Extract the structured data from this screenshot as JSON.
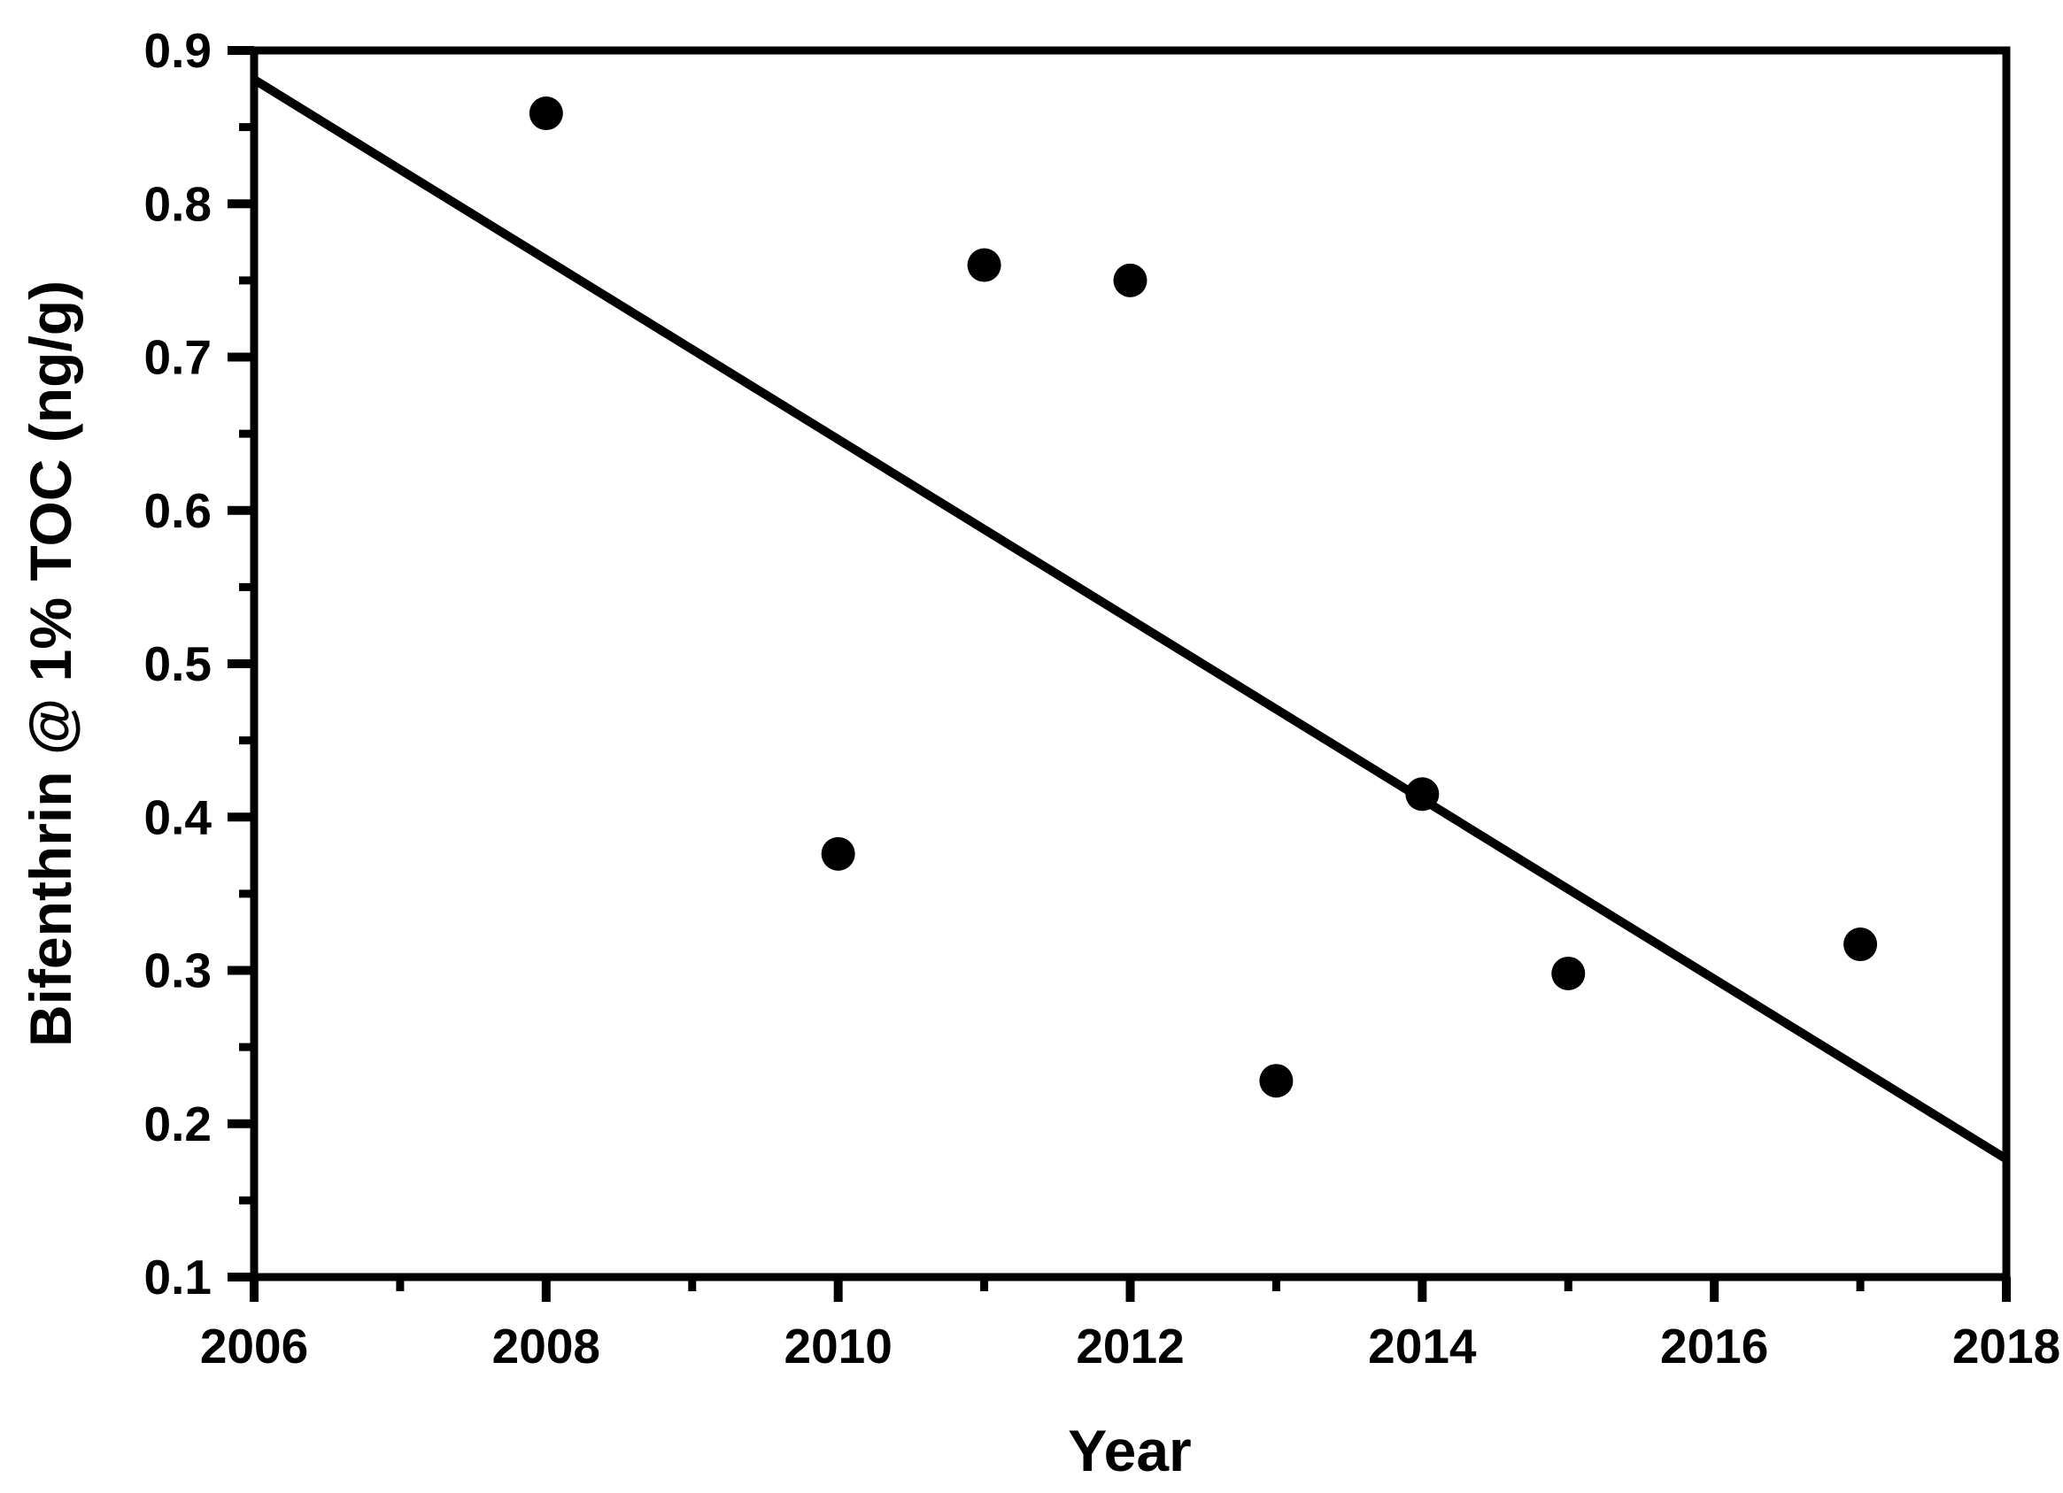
{
  "figure": {
    "background_color": "#ffffff",
    "foreground_color": "#000000"
  },
  "chart_data": {
    "type": "scatter",
    "title": "",
    "xlabel": "Year",
    "ylabel": "Bifenthrin @ 1% TOC (ng/g)",
    "xlim": [
      2006,
      2018
    ],
    "ylim": [
      0.1,
      0.9
    ],
    "grid": "off",
    "legend": "none",
    "x_major_ticks": [
      2006,
      2008,
      2010,
      2012,
      2014,
      2016,
      2018
    ],
    "x_tick_labels": [
      "2006",
      "2008",
      "2010",
      "2012",
      "2014",
      "2016",
      "2018"
    ],
    "x_minor_ticks": [
      2007,
      2009,
      2011,
      2013,
      2015,
      2017
    ],
    "y_major_ticks": [
      0.1,
      0.2,
      0.3,
      0.4,
      0.5,
      0.6,
      0.7,
      0.8,
      0.9
    ],
    "y_tick_labels": [
      "0.1",
      "0.2",
      "0.3",
      "0.4",
      "0.5",
      "0.6",
      "0.7",
      "0.8",
      "0.9"
    ],
    "y_minor_ticks": [
      0.15,
      0.25,
      0.35,
      0.45,
      0.55,
      0.65,
      0.75,
      0.85
    ],
    "points": [
      {
        "year": 2008,
        "value": 0.859
      },
      {
        "year": 2010,
        "value": 0.376
      },
      {
        "year": 2011,
        "value": 0.76
      },
      {
        "year": 2012,
        "value": 0.75
      },
      {
        "year": 2013,
        "value": 0.228
      },
      {
        "year": 2014,
        "value": 0.415
      },
      {
        "year": 2015,
        "value": 0.298
      },
      {
        "year": 2017,
        "value": 0.317
      }
    ],
    "trendline": {
      "x1": 2006,
      "y1": 0.881,
      "x2": 2018,
      "y2": 0.177
    },
    "marker_color": "#000000",
    "line_color": "#000000"
  }
}
